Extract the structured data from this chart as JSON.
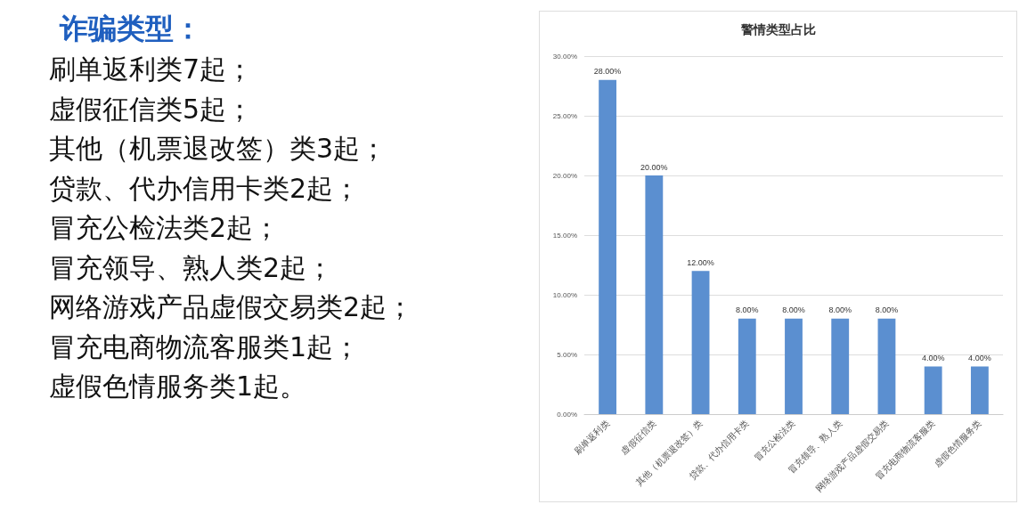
{
  "chart_data": {
    "type": "bar",
    "title": "警情类型占比",
    "categories": [
      "刷单返利类",
      "虚假征信类",
      "其他（机票退改签）类",
      "贷款、代办信用卡类",
      "冒充公检法类",
      "冒充领导、熟人类",
      "网络游戏产品虚假交易类",
      "冒充电商物流客服类",
      "虚假色情服务类"
    ],
    "values": [
      28,
      20,
      12,
      8,
      8,
      8,
      8,
      4,
      4
    ],
    "value_labels": [
      "28.00%",
      "20.00%",
      "12.00%",
      "8.00%",
      "8.00%",
      "8.00%",
      "8.00%",
      "4.00%",
      "4.00%"
    ],
    "color": "#5b8fd0",
    "ylim": [
      0,
      30
    ],
    "yticks": [
      {
        "value": 0,
        "label": "0.00%"
      },
      {
        "value": 5,
        "label": "5.00%"
      },
      {
        "value": 10,
        "label": "10.00%"
      },
      {
        "value": 15,
        "label": "15.00%"
      },
      {
        "value": 20,
        "label": "20.00%"
      },
      {
        "value": 25,
        "label": "25.00%"
      },
      {
        "value": 30,
        "label": "30.00%"
      }
    ],
    "grid": "y",
    "annotations": [
      "诈骗类型：",
      "刷单返利类7起；",
      "虚假征信类5起；",
      "其他（机票退改签）类3起；",
      "贷款、代办信用卡类2起；",
      "冒充公检法类2起；",
      "冒充领导、熟人类2起；",
      "网络游戏产品虚假交易类2起；",
      "冒充电商物流客服类1起；",
      "虚假色情服务类1起。"
    ]
  }
}
